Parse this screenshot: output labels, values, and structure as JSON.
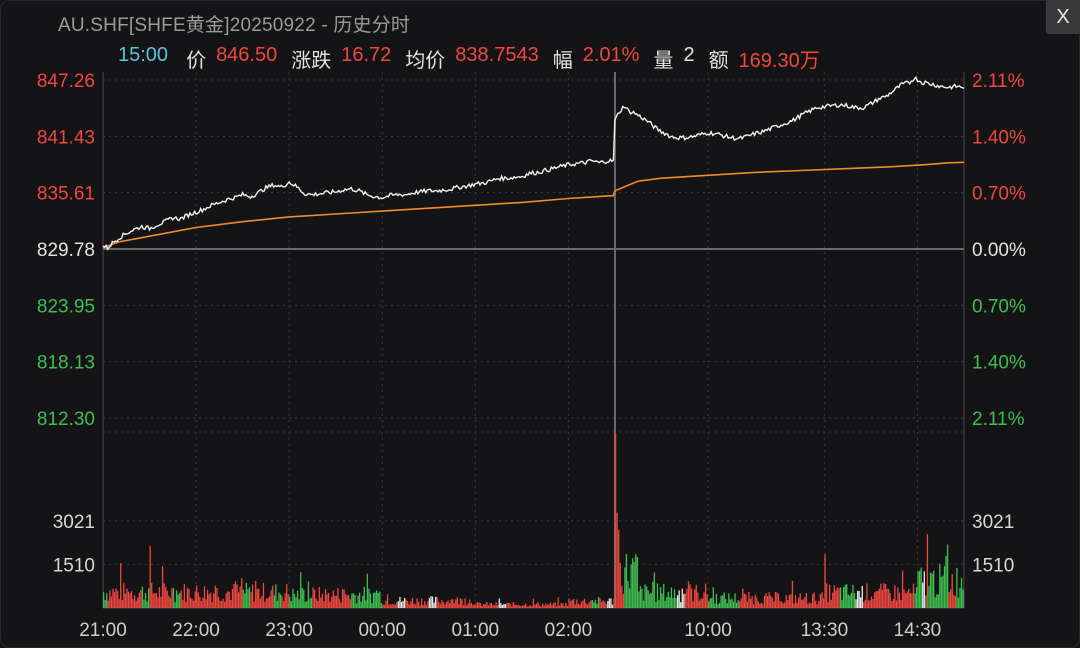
{
  "window": {
    "title": "AU.SHF[SHFE黄金]20250922 - 历史分时",
    "close_label": "X"
  },
  "info_bar": {
    "time": "15:00",
    "price_label": "价",
    "price": "846.50",
    "change_label": "涨跌",
    "change": "16.72",
    "avg_label": "均价",
    "avg": "838.7543",
    "range_label": "幅",
    "range": "2.01%",
    "volume_label": "量",
    "volume": "2",
    "amount_label": "额",
    "amount": "169.30万"
  },
  "colors": {
    "up": "#f0473f",
    "down": "#3fbf50",
    "neutral": "#e2e2e2",
    "price_line": "#f2f2f2",
    "avg_line": "#f08c2a",
    "time_label": "#57c4d8",
    "grid": "#3a3a3e",
    "base_line": "#6a6a6e"
  },
  "chart_data": {
    "type": "line",
    "base_price": 829.78,
    "price_axis": {
      "range": [
        812.3,
        847.26
      ],
      "ticks": [
        847.26,
        841.43,
        835.61,
        829.78,
        823.95,
        818.13,
        812.3
      ],
      "tick_labels": [
        "847.26",
        "841.43",
        "835.61",
        "829.78",
        "823.95",
        "818.13",
        "812.30"
      ],
      "pct_labels": [
        "2.11%",
        "1.40%",
        "0.70%",
        "0.00%",
        "0.70%",
        "1.40%",
        "2.11%"
      ]
    },
    "x_axis": {
      "sessions": [
        {
          "label": "21:00",
          "start": 0
        },
        {
          "label": "22:00",
          "start": 60
        },
        {
          "label": "23:00",
          "start": 120
        },
        {
          "label": "00:00",
          "start": 180
        },
        {
          "label": "01:00",
          "start": 240
        },
        {
          "label": "02:00",
          "start": 300
        },
        {
          "label": "10:00",
          "start": 390
        },
        {
          "label": "13:30",
          "start": 465
        },
        {
          "label": "14:30",
          "start": 525
        }
      ],
      "total_minutes": 555,
      "day_session_start": 330
    },
    "price_series": [
      [
        0,
        830.1
      ],
      [
        3,
        829.9
      ],
      [
        6,
        830.4
      ],
      [
        10,
        830.9
      ],
      [
        15,
        831.4
      ],
      [
        20,
        831.8
      ],
      [
        25,
        832.1
      ],
      [
        30,
        831.9
      ],
      [
        35,
        832.3
      ],
      [
        40,
        832.6
      ],
      [
        45,
        833.0
      ],
      [
        50,
        832.9
      ],
      [
        55,
        833.3
      ],
      [
        60,
        833.6
      ],
      [
        65,
        833.9
      ],
      [
        70,
        834.3
      ],
      [
        75,
        834.6
      ],
      [
        80,
        834.9
      ],
      [
        85,
        835.1
      ],
      [
        90,
        835.4
      ],
      [
        95,
        835.2
      ],
      [
        100,
        835.6
      ],
      [
        105,
        836.1
      ],
      [
        110,
        836.4
      ],
      [
        115,
        836.2
      ],
      [
        120,
        836.7
      ],
      [
        125,
        836.2
      ],
      [
        130,
        835.5
      ],
      [
        135,
        835.4
      ],
      [
        140,
        835.5
      ],
      [
        145,
        835.6
      ],
      [
        150,
        835.7
      ],
      [
        155,
        835.9
      ],
      [
        160,
        836.0
      ],
      [
        165,
        835.8
      ],
      [
        170,
        835.4
      ],
      [
        175,
        835.2
      ],
      [
        180,
        835.1
      ],
      [
        185,
        835.3
      ],
      [
        190,
        835.4
      ],
      [
        195,
        835.4
      ],
      [
        200,
        835.6
      ],
      [
        205,
        835.7
      ],
      [
        210,
        835.8
      ],
      [
        215,
        835.8
      ],
      [
        220,
        835.9
      ],
      [
        225,
        836.0
      ],
      [
        230,
        836.2
      ],
      [
        235,
        836.3
      ],
      [
        240,
        836.5
      ],
      [
        245,
        836.6
      ],
      [
        250,
        836.8
      ],
      [
        255,
        837.1
      ],
      [
        260,
        837.1
      ],
      [
        265,
        837.2
      ],
      [
        270,
        837.3
      ],
      [
        275,
        837.6
      ],
      [
        280,
        837.7
      ],
      [
        285,
        837.9
      ],
      [
        290,
        838.1
      ],
      [
        295,
        838.3
      ],
      [
        300,
        838.5
      ],
      [
        305,
        838.6
      ],
      [
        310,
        838.7
      ],
      [
        315,
        838.9
      ],
      [
        320,
        838.7
      ],
      [
        325,
        838.9
      ],
      [
        329,
        838.9
      ],
      [
        330,
        843.1
      ],
      [
        333,
        844.0
      ],
      [
        336,
        844.6
      ],
      [
        339,
        844.0
      ],
      [
        342,
        843.9
      ],
      [
        345,
        843.6
      ],
      [
        348,
        843.3
      ],
      [
        351,
        843.0
      ],
      [
        354,
        842.6
      ],
      [
        357,
        842.2
      ],
      [
        360,
        841.9
      ],
      [
        363,
        841.7
      ],
      [
        366,
        841.4
      ],
      [
        370,
        841.3
      ],
      [
        375,
        841.3
      ],
      [
        380,
        841.4
      ],
      [
        385,
        841.6
      ],
      [
        390,
        841.8
      ],
      [
        395,
        841.7
      ],
      [
        400,
        841.5
      ],
      [
        405,
        841.3
      ],
      [
        410,
        841.2
      ],
      [
        415,
        841.4
      ],
      [
        420,
        841.7
      ],
      [
        425,
        841.9
      ],
      [
        430,
        842.2
      ],
      [
        435,
        842.5
      ],
      [
        440,
        842.8
      ],
      [
        445,
        843.1
      ],
      [
        450,
        843.6
      ],
      [
        455,
        844.0
      ],
      [
        460,
        844.4
      ],
      [
        465,
        844.5
      ],
      [
        470,
        844.6
      ],
      [
        475,
        844.7
      ],
      [
        480,
        844.6
      ],
      [
        485,
        844.4
      ],
      [
        490,
        844.4
      ],
      [
        495,
        844.8
      ],
      [
        500,
        845.3
      ],
      [
        505,
        845.6
      ],
      [
        510,
        846.2
      ],
      [
        515,
        846.8
      ],
      [
        520,
        847.0
      ],
      [
        523,
        847.5
      ],
      [
        526,
        847.2
      ],
      [
        528,
        847.0
      ],
      [
        530,
        847.0
      ],
      [
        532,
        846.9
      ],
      [
        535,
        846.8
      ],
      [
        540,
        846.6
      ],
      [
        545,
        846.5
      ],
      [
        550,
        846.6
      ],
      [
        555,
        846.5
      ]
    ],
    "avg_series": [
      [
        0,
        829.9
      ],
      [
        10,
        830.5
      ],
      [
        30,
        831.1
      ],
      [
        60,
        832.0
      ],
      [
        90,
        832.6
      ],
      [
        120,
        833.1
      ],
      [
        150,
        833.4
      ],
      [
        180,
        833.7
      ],
      [
        210,
        834.0
      ],
      [
        240,
        834.3
      ],
      [
        270,
        834.6
      ],
      [
        300,
        835.0
      ],
      [
        329,
        835.3
      ],
      [
        330,
        835.8
      ],
      [
        345,
        836.8
      ],
      [
        360,
        837.1
      ],
      [
        390,
        837.4
      ],
      [
        420,
        837.7
      ],
      [
        450,
        837.9
      ],
      [
        480,
        838.1
      ],
      [
        510,
        838.3
      ],
      [
        530,
        838.5
      ],
      [
        545,
        838.7
      ],
      [
        555,
        838.75
      ]
    ],
    "volume_axis": {
      "range": [
        0,
        6100
      ],
      "ticks": [
        1510,
        3021
      ],
      "tick_labels": [
        "1510",
        "3021"
      ]
    },
    "volume_notes": "minute volumes, colored by up/down/flat",
    "volume_peaks": [
      {
        "minute": 30,
        "volume": 2150
      },
      {
        "minute": 330,
        "volume": 6050
      },
      {
        "minute": 331,
        "volume": 3300
      },
      {
        "minute": 465,
        "volume": 1870
      },
      {
        "minute": 531,
        "volume": 2560
      }
    ],
    "volume_level_by_segment": [
      {
        "from": 0,
        "to": 60,
        "level": 650
      },
      {
        "from": 60,
        "to": 120,
        "level": 640
      },
      {
        "from": 120,
        "to": 180,
        "level": 540
      },
      {
        "from": 180,
        "to": 240,
        "level": 300
      },
      {
        "from": 240,
        "to": 300,
        "level": 150
      },
      {
        "from": 300,
        "to": 330,
        "level": 280
      },
      {
        "from": 330,
        "to": 345,
        "level": 1500
      },
      {
        "from": 345,
        "to": 390,
        "level": 620
      },
      {
        "from": 390,
        "to": 465,
        "level": 400
      },
      {
        "from": 465,
        "to": 525,
        "level": 620
      },
      {
        "from": 525,
        "to": 555,
        "level": 1100
      }
    ]
  }
}
